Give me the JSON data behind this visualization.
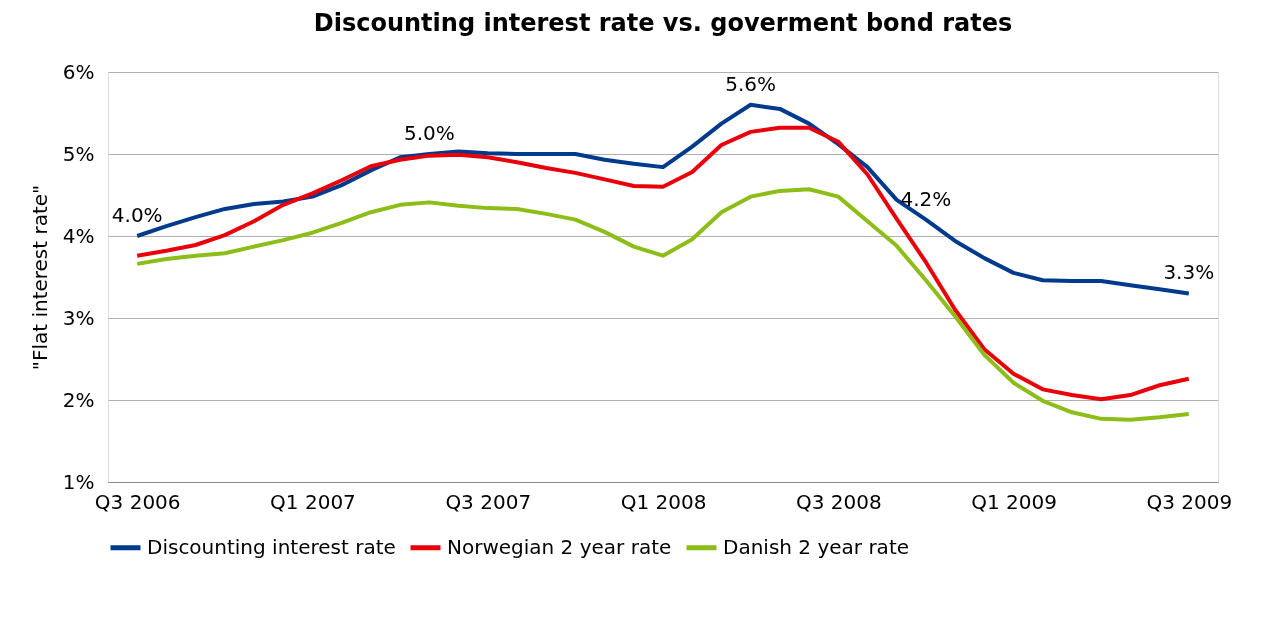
{
  "chart_data": {
    "type": "line",
    "title": "Discounting interest rate vs. goverment bond rates",
    "ylabel": "\"Flat interest rate\"",
    "categories": [
      "Q3 2006",
      null,
      null,
      null,
      null,
      null,
      "Q1 2007",
      null,
      null,
      null,
      null,
      null,
      "Q3 2007",
      null,
      null,
      null,
      null,
      null,
      "Q1 2008",
      null,
      null,
      null,
      null,
      null,
      "Q3 2008",
      null,
      null,
      null,
      null,
      null,
      "Q1 2009",
      null,
      null,
      null,
      null,
      null,
      "Q3 2009"
    ],
    "series": [
      {
        "name": "Discounting interest rate",
        "color": "#003a8c",
        "values": [
          4.0,
          4.12,
          4.23,
          4.33,
          4.39,
          4.42,
          4.48,
          4.62,
          4.8,
          4.96,
          5.0,
          5.03,
          5.01,
          5.0,
          5.0,
          5.0,
          4.93,
          4.88,
          4.84,
          5.09,
          5.37,
          5.6,
          5.55,
          5.37,
          5.12,
          4.84,
          4.44,
          4.2,
          3.94,
          3.73,
          3.55,
          3.46,
          3.45,
          3.45,
          3.4,
          3.35,
          3.3
        ],
        "value_labels": [
          "4.0%",
          null,
          null,
          null,
          null,
          null,
          null,
          null,
          null,
          null,
          "5.0%",
          null,
          null,
          null,
          null,
          null,
          null,
          null,
          null,
          null,
          null,
          "5.6%",
          null,
          null,
          null,
          null,
          null,
          "4.2%",
          null,
          null,
          null,
          null,
          null,
          null,
          null,
          null,
          "3.3%"
        ]
      },
      {
        "name": "Norwegian 2 year rate",
        "color": "#e8000b",
        "values": [
          3.76,
          3.82,
          3.89,
          4.01,
          4.18,
          4.38,
          4.52,
          4.68,
          4.85,
          4.93,
          4.98,
          4.99,
          4.96,
          4.9,
          4.83,
          4.77,
          4.69,
          4.61,
          4.6,
          4.78,
          5.11,
          5.27,
          5.32,
          5.32,
          5.15,
          4.75,
          4.21,
          3.68,
          3.1,
          2.62,
          2.32,
          2.13,
          2.06,
          2.01,
          2.06,
          2.18,
          2.26
        ]
      },
      {
        "name": "Danish 2 year rate",
        "color": "#8cbd18",
        "values": [
          3.66,
          3.72,
          3.76,
          3.79,
          3.87,
          3.95,
          4.04,
          4.16,
          4.29,
          4.38,
          4.41,
          4.37,
          4.34,
          4.33,
          4.27,
          4.2,
          4.05,
          3.87,
          3.76,
          3.96,
          4.29,
          4.48,
          4.55,
          4.57,
          4.48,
          4.18,
          3.88,
          3.46,
          3.02,
          2.55,
          2.21,
          1.99,
          1.85,
          1.77,
          1.76,
          1.79,
          1.83
        ]
      }
    ],
    "ylim": [
      1,
      6
    ],
    "yticks": [
      {
        "value": 1,
        "label": "1%"
      },
      {
        "value": 2,
        "label": "2%"
      },
      {
        "value": 3,
        "label": "3%"
      },
      {
        "value": 4,
        "label": "4%"
      },
      {
        "value": 5,
        "label": "5%"
      },
      {
        "value": 6,
        "label": "6%"
      }
    ],
    "grid": "y",
    "legend": "bottom",
    "marker": "none",
    "line_style": "solid"
  }
}
